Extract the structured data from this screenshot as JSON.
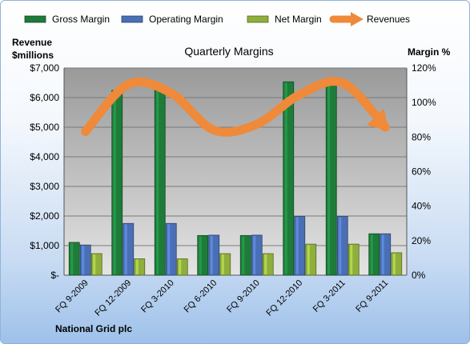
{
  "chart_data": {
    "type": "bar",
    "title": "Quarterly Margins",
    "ylabel_left": [
      "Revenue",
      "$millions"
    ],
    "ylabel_right": "Margin %",
    "footer": "National Grid plc",
    "categories": [
      "FQ 9-2009",
      "FQ 12-2009",
      "FQ 3-2010",
      "FQ 6-2010",
      "FQ 9-2010",
      "FQ 12-2010",
      "FQ 3-2011",
      "FQ 9-2011"
    ],
    "left_axis": {
      "min": 0,
      "max": 7000,
      "ticks": [
        "$-",
        "$1,000",
        "$2,000",
        "$3,000",
        "$4,000",
        "$5,000",
        "$6,000",
        "$7,000"
      ]
    },
    "right_axis": {
      "min": 0,
      "max": 120,
      "ticks": [
        "0%",
        "20%",
        "40%",
        "60%",
        "80%",
        "100%",
        "120%"
      ]
    },
    "series": [
      {
        "name": "Gross Margin",
        "axis": "right",
        "kind": "bar",
        "color": "#1e7b3a",
        "values": [
          19,
          107,
          107,
          23,
          23,
          112,
          112,
          24
        ]
      },
      {
        "name": "Operating Margin",
        "axis": "right",
        "kind": "bar",
        "color": "#4a6fb5",
        "values": [
          17.5,
          30,
          30,
          23.2,
          23.2,
          34,
          34,
          24
        ]
      },
      {
        "name": "Net Margin",
        "axis": "right",
        "kind": "bar",
        "color": "#8fae3c",
        "values": [
          12.5,
          9.5,
          9.5,
          12.5,
          12.5,
          18,
          18,
          13
        ]
      },
      {
        "name": "Revenues",
        "axis": "left",
        "kind": "line",
        "color": "#ee8a3a",
        "values": [
          4850,
          6450,
          6150,
          4900,
          5100,
          6100,
          6500,
          5000
        ]
      }
    ],
    "grid": true,
    "legend": "top"
  }
}
